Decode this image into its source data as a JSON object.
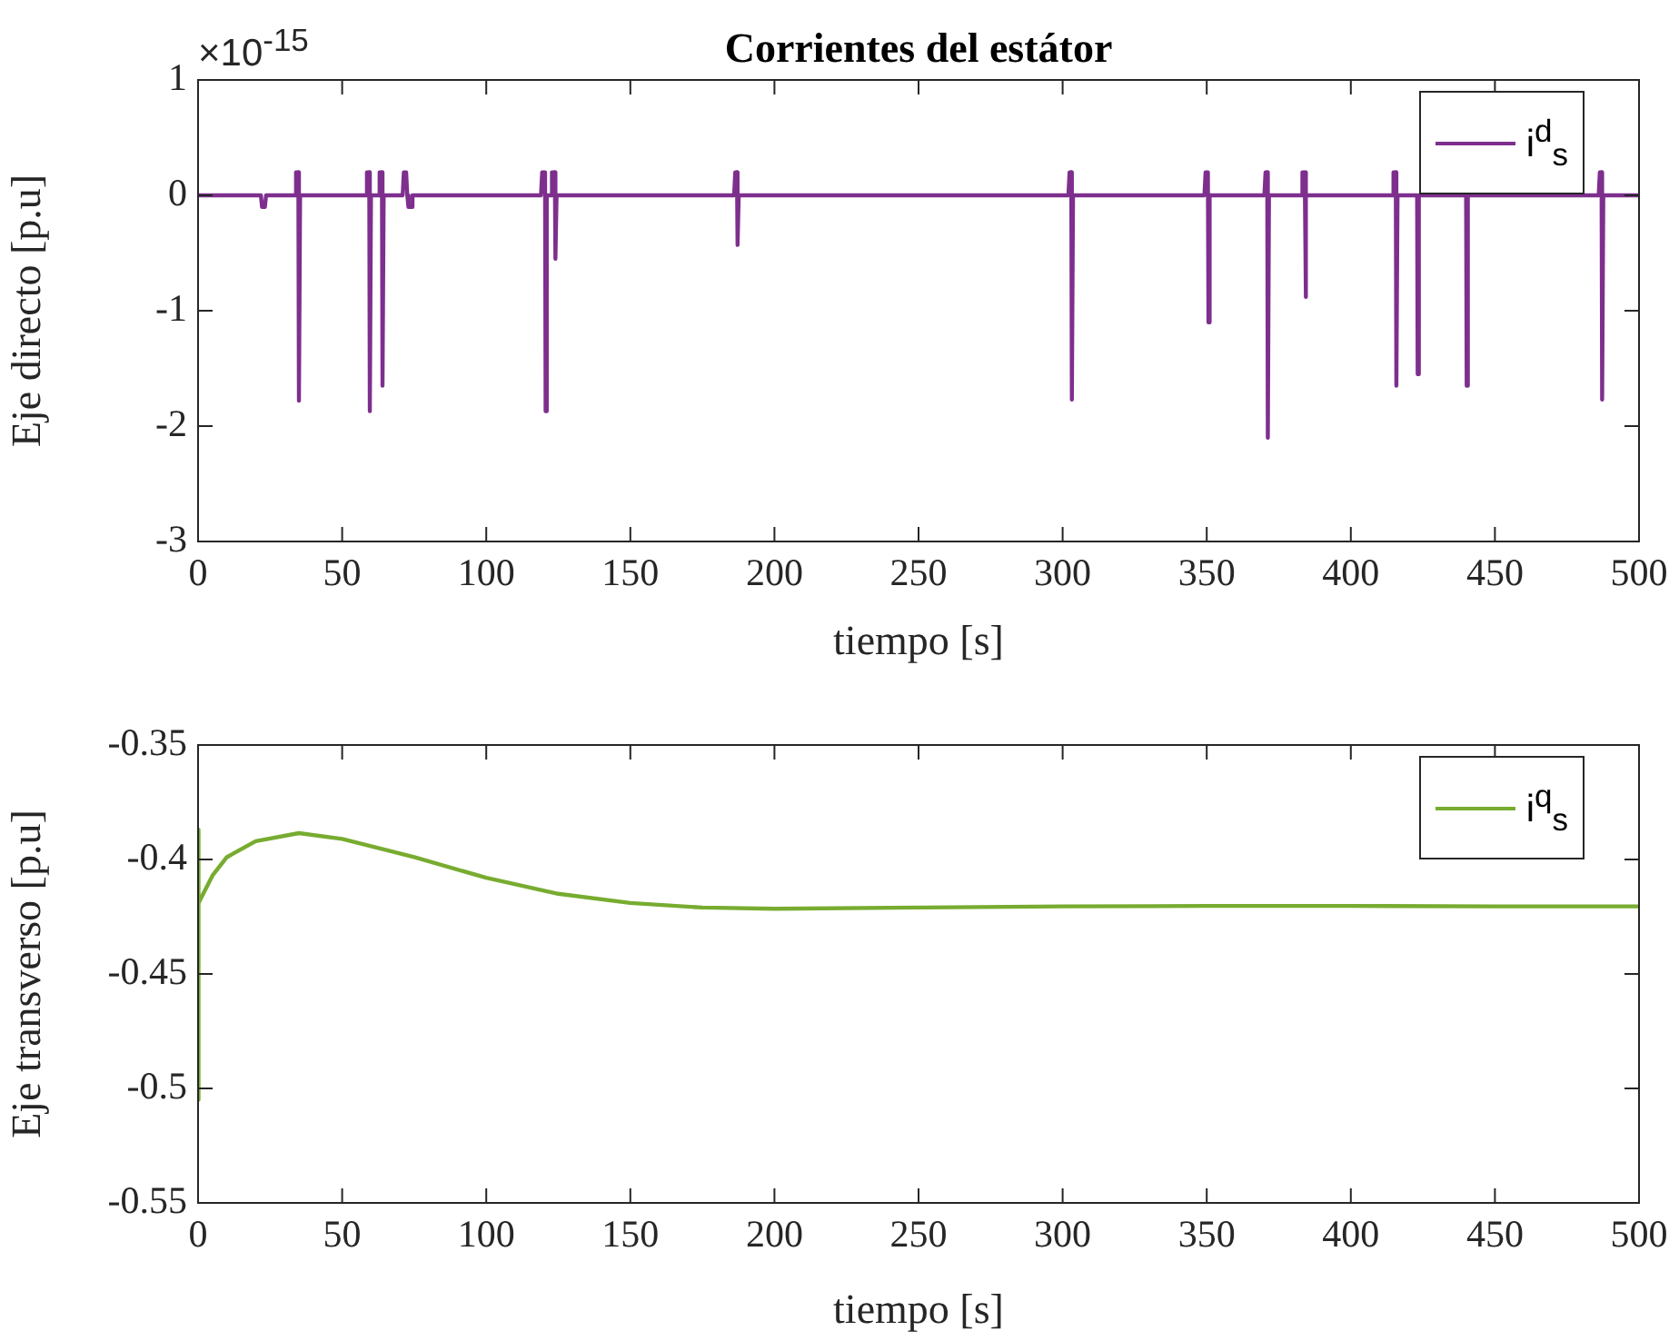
{
  "chart_data": [
    {
      "type": "line",
      "title": "Corrientes del estátor",
      "xlabel": "tiempo [s]",
      "ylabel": "Eje directo [p.u]",
      "annotations": [
        "×10$^{-15}$"
      ],
      "legend": "top right",
      "grid": false,
      "xlim": [
        0,
        500
      ],
      "xticks": [
        0,
        50,
        100,
        150,
        200,
        250,
        300,
        350,
        400,
        450,
        500
      ],
      "ylim": [
        -3,
        1
      ],
      "yticks": [
        -3,
        -2,
        -1,
        0,
        1
      ],
      "series": [
        {
          "name": "i$^{d}$$_{s}$",
          "color": "#7e2f8e",
          "x": [
            0,
            21.8,
            22.2,
            23.2,
            23.6,
            33.6,
            34,
            34.8,
            35,
            35.4,
            58.2,
            58.6,
            59.4,
            59.6,
            60,
            62.6,
            63,
            63.8,
            64,
            64.4,
            71,
            71.4,
            72.2,
            72.6,
            73,
            74,
            74.4,
            119,
            119.4,
            120.4,
            120.6,
            121,
            122.4,
            122.8,
            123.8,
            124,
            124.4,
            186,
            186.4,
            187,
            187.2,
            187.6,
            302,
            302.4,
            303,
            303.2,
            303.6,
            349.2,
            349.6,
            350.4,
            350.6,
            351,
            370,
            370.4,
            371,
            371.2,
            371.6,
            382.8,
            383.2,
            384,
            384.2,
            384.6,
            414.4,
            414.8,
            415.6,
            415.8,
            416.2,
            423,
            423.2,
            423.6,
            440,
            440.2,
            440.6,
            486,
            486.4,
            487,
            487.2,
            487.6,
            500
          ],
          "values": [
            0,
            0,
            -0.1,
            -0.1,
            0,
            0,
            0.2,
            0.2,
            -1.78,
            0,
            0,
            0.2,
            0.2,
            -1.87,
            0,
            0,
            0.2,
            0.2,
            -1.65,
            0,
            0,
            0.2,
            0.2,
            0,
            -0.1,
            -0.1,
            0,
            0,
            0.2,
            0.2,
            -1.87,
            0,
            0,
            0.2,
            0.2,
            -0.55,
            0,
            0,
            0.2,
            0.2,
            -0.43,
            0,
            0,
            0.2,
            0.2,
            -1.77,
            0,
            0,
            0.2,
            0.2,
            -1.1,
            0,
            0,
            0.2,
            0.2,
            -2.1,
            0,
            0,
            0.2,
            0.2,
            -0.88,
            0,
            0,
            0.2,
            0.2,
            -1.65,
            0,
            0,
            -1.55,
            0,
            0,
            -1.65,
            0,
            0,
            0.2,
            0.2,
            -1.77,
            0,
            0
          ]
        }
      ]
    },
    {
      "type": "line",
      "xlabel": "tiempo [s]",
      "ylabel": "Eje transverso [p.u]",
      "legend": "top right",
      "grid": false,
      "xlim": [
        0,
        500
      ],
      "xticks": [
        0,
        50,
        100,
        150,
        200,
        250,
        300,
        350,
        400,
        450,
        500
      ],
      "ylim": [
        -0.55,
        -0.35
      ],
      "yticks": [
        -0.55,
        -0.5,
        -0.45,
        -0.4,
        -0.35
      ],
      "series": [
        {
          "name": "i$^{q}$$_{s}$",
          "color": "#77ac30",
          "x": [
            0,
            0,
            0.3,
            5,
            10,
            20,
            35,
            50,
            75,
            100,
            125,
            150,
            175,
            200,
            250,
            300,
            350,
            400,
            450,
            500
          ],
          "values": [
            -0.505,
            -0.387,
            -0.419,
            -0.407,
            -0.399,
            -0.392,
            -0.3885,
            -0.391,
            -0.399,
            -0.408,
            -0.415,
            -0.419,
            -0.421,
            -0.4215,
            -0.421,
            -0.4205,
            -0.4203,
            -0.4203,
            -0.4205,
            -0.4205
          ]
        }
      ]
    }
  ]
}
